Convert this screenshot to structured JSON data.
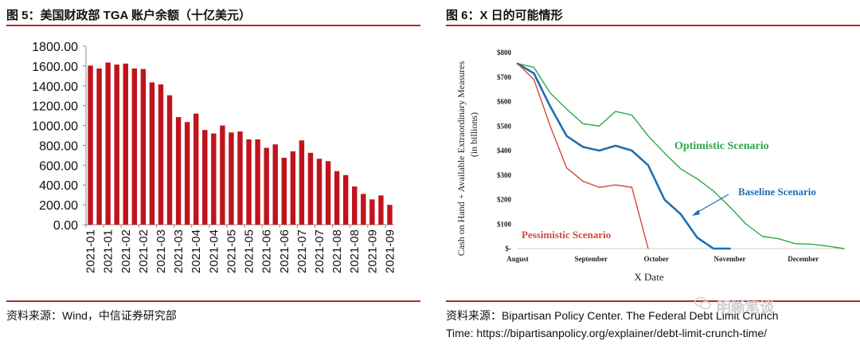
{
  "left": {
    "title": "图 5：美国财政部 TGA 账户余额（十亿美元）",
    "source": "资料来源：Wind，中信证券研究部",
    "chart_data": {
      "type": "bar",
      "title": "",
      "ylim": [
        0,
        1800
      ],
      "yticks": [
        "0.00",
        "200.00",
        "400.00",
        "600.00",
        "800.00",
        "1000.00",
        "1200.00",
        "1400.00",
        "1600.00",
        "1800.00"
      ],
      "xtick_labels": [
        "2021-01",
        "2021-01",
        "2021-02",
        "2021-02",
        "2021-03",
        "2021-03",
        "2021-04",
        "2021-04",
        "2021-05",
        "2021-05",
        "2021-06",
        "2021-06",
        "2021-07",
        "2021-07",
        "2021-08",
        "2021-08",
        "2021-09",
        "2021-09"
      ],
      "values": [
        1605,
        1575,
        1635,
        1615,
        1625,
        1575,
        1570,
        1435,
        1415,
        1305,
        1085,
        1035,
        1120,
        955,
        920,
        1000,
        930,
        940,
        860,
        860,
        775,
        810,
        675,
        740,
        850,
        725,
        665,
        640,
        540,
        500,
        385,
        310,
        255,
        295,
        200
      ],
      "bar_color": "#c0141c"
    }
  },
  "right": {
    "title": "图 6：X 日的可能情形",
    "source_line1": "资料来源：Bipartisan Policy Center. The Federal Debt Limit Crunch",
    "source_line2": "Time: https://bipartisanpolicy.org/explainer/debt-limit-crunch-time/",
    "chart_data": {
      "type": "line",
      "ylabel_line1": "Cash on Hand + Available Extraordinary Measures",
      "ylabel_line2": "(in billions)",
      "xlabel": "X Date",
      "ylim": [
        0,
        800
      ],
      "yticks": [
        {
          "v": 0,
          "label": "$-"
        },
        {
          "v": 100,
          "label": "$100"
        },
        {
          "v": 200,
          "label": "$200"
        },
        {
          "v": 300,
          "label": "$300"
        },
        {
          "v": 400,
          "label": "$400"
        },
        {
          "v": 500,
          "label": "$500"
        },
        {
          "v": 600,
          "label": "$600"
        },
        {
          "v": 700,
          "label": "$700"
        },
        {
          "v": 800,
          "label": "$800"
        }
      ],
      "xlim": [
        0,
        20
      ],
      "xticks": [
        {
          "v": 0,
          "label": "August"
        },
        {
          "v": 4.5,
          "label": "September"
        },
        {
          "v": 8.5,
          "label": "October"
        },
        {
          "v": 13,
          "label": "November"
        },
        {
          "v": 17.5,
          "label": "December"
        }
      ],
      "series": [
        {
          "name": "Optimistic Scenario",
          "color": "#2ea84a",
          "width": 1.4,
          "x": [
            0,
            1,
            2,
            3,
            4,
            5,
            6,
            7,
            8,
            9,
            10,
            11,
            12,
            13,
            14,
            15,
            16,
            17,
            18,
            19,
            20
          ],
          "y": [
            755,
            740,
            635,
            570,
            510,
            500,
            560,
            545,
            460,
            390,
            325,
            285,
            235,
            170,
            100,
            50,
            40,
            20,
            18,
            10,
            0
          ]
        },
        {
          "name": "Baseline Scenario",
          "color": "#1f6fb2",
          "width": 2.6,
          "x": [
            0,
            1,
            2,
            3,
            4,
            5,
            6,
            7,
            8,
            9,
            10,
            11,
            12,
            13
          ],
          "y": [
            755,
            715,
            580,
            460,
            415,
            400,
            420,
            400,
            340,
            200,
            140,
            45,
            0,
            0
          ]
        },
        {
          "name": "Pessimistic Scenario",
          "color": "#d04a3a",
          "width": 1.4,
          "x": [
            0,
            1,
            2,
            3,
            4,
            5,
            6,
            7,
            8
          ],
          "y": [
            755,
            690,
            500,
            330,
            275,
            250,
            260,
            250,
            0
          ]
        }
      ],
      "annotations": [
        {
          "text": "Optimistic Scenario",
          "color": "#2ea84a"
        },
        {
          "text": "Baseline Scenario",
          "color": "#1f6fb2"
        },
        {
          "text": "Pessimistic Scenario",
          "color": "#d04a3a"
        }
      ]
    }
  },
  "watermark": "明晰笔谈"
}
